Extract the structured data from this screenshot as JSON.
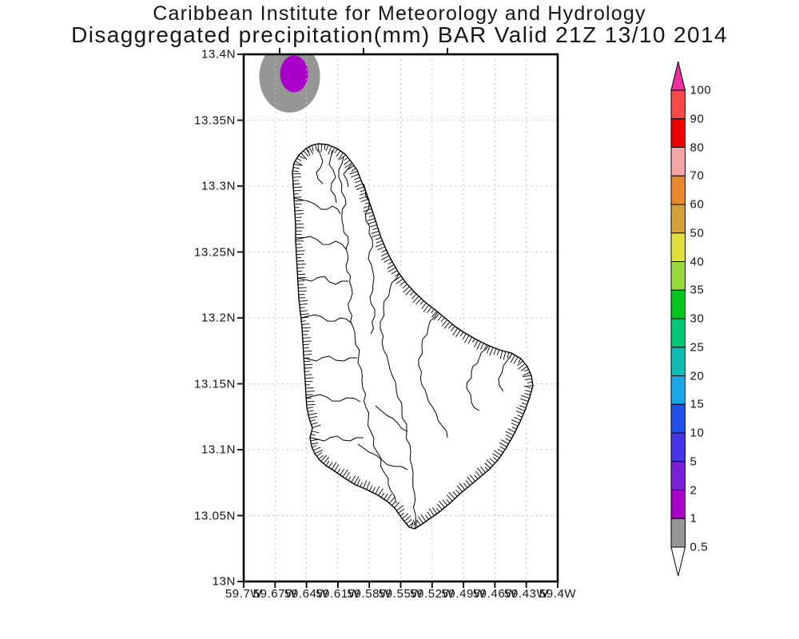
{
  "title": {
    "line1": "Caribbean Institute for Meteorology and Hydrology",
    "line2": "Disaggregated precipitation(mm) BAR Valid 21Z 13/10 2014"
  },
  "map": {
    "region": "Barbados (BAR)",
    "lat_labels": [
      "13.4N",
      "13.35N",
      "13.3N",
      "13.25N",
      "13.2N",
      "13.15N",
      "13.1N",
      "13.05N",
      "13N"
    ],
    "lon_labels": [
      "59.7W",
      "59.67W",
      "59.64W",
      "59.61W",
      "59.58W",
      "59.55W",
      "59.52W",
      "59.49W",
      "59.46W",
      "59.43W",
      "59.4W"
    ]
  },
  "colorbar": {
    "tick_labels": [
      "100",
      "90",
      "80",
      "70",
      "60",
      "50",
      "40",
      "35",
      "30",
      "25",
      "20",
      "15",
      "10",
      "5",
      "2",
      "1",
      "0.5"
    ],
    "segment_colors_top_to_bottom": [
      "#f34949",
      "#ee0000",
      "#f4a6a6",
      "#e6882b",
      "#d4a238",
      "#dfdf3e",
      "#98d93c",
      "#00c61e",
      "#00c878",
      "#0cbcb4",
      "#18a8e8",
      "#2051e8",
      "#4736e8",
      "#7a20d8",
      "#a800c8",
      "#969696"
    ],
    "arrow_top_color": "#ee2f9e",
    "arrow_bottom_color": "#ffffff",
    "outline_color": "#000000"
  },
  "chart_data": {
    "type": "heatmap",
    "title": "Disaggregated precipitation(mm) BAR Valid 21Z 13/10 2014",
    "subtitle": "Caribbean Institute for Meteorology and Hydrology",
    "variable": "Disaggregated precipitation",
    "units": "mm",
    "region_code": "BAR",
    "valid_time": "21Z 13/10 2014",
    "lat_axis": {
      "label_ticks": [
        "13.4N",
        "13.35N",
        "13.3N",
        "13.25N",
        "13.2N",
        "13.15N",
        "13.1N",
        "13.05N",
        "13N"
      ],
      "range_deg_n": [
        13.0,
        13.4
      ]
    },
    "lon_axis": {
      "label_ticks": [
        "59.7W",
        "59.67W",
        "59.64W",
        "59.61W",
        "59.58W",
        "59.55W",
        "59.52W",
        "59.49W",
        "59.46W",
        "59.43W",
        "59.4W"
      ],
      "range_deg_w": [
        59.7,
        59.4
      ]
    },
    "shading_levels_mm": [
      0.5,
      1,
      2,
      5,
      10,
      15,
      20,
      25,
      30,
      35,
      40,
      50,
      60,
      70,
      80,
      90,
      100
    ],
    "shading_colors": [
      "#969696",
      "#a800c8",
      "#7a20d8",
      "#4736e8",
      "#2051e8",
      "#18a8e8",
      "#0cbcb4",
      "#00c878",
      "#00c61e",
      "#98d93c",
      "#dfdf3e",
      "#d4a238",
      "#e6882b",
      "#f4a6a6",
      "#ee0000",
      "#f34949",
      "#ee2f9e"
    ],
    "grid": "dashed graticule, lat every 0.05 deg, lon every 0.03 deg",
    "legend_position": "right vertical colorbar with overflow arrows",
    "shaded_cells": [
      {
        "description": "single small precipitation cell offshore northwest of Barbados, clipped by top map edge",
        "center": {
          "lon_deg_w": 59.656,
          "lat_deg_n": 13.383
        },
        "bands": [
          {
            "range_mm": "0.5-1",
            "color": "#969696"
          },
          {
            "range_mm": "1-2",
            "color": "#a800c8"
          }
        ]
      }
    ],
    "basemap": "Barbados coastline with dense coastal watershed hatching and interior drainage-basin boundaries, unshaded (no precipitation over land)"
  }
}
